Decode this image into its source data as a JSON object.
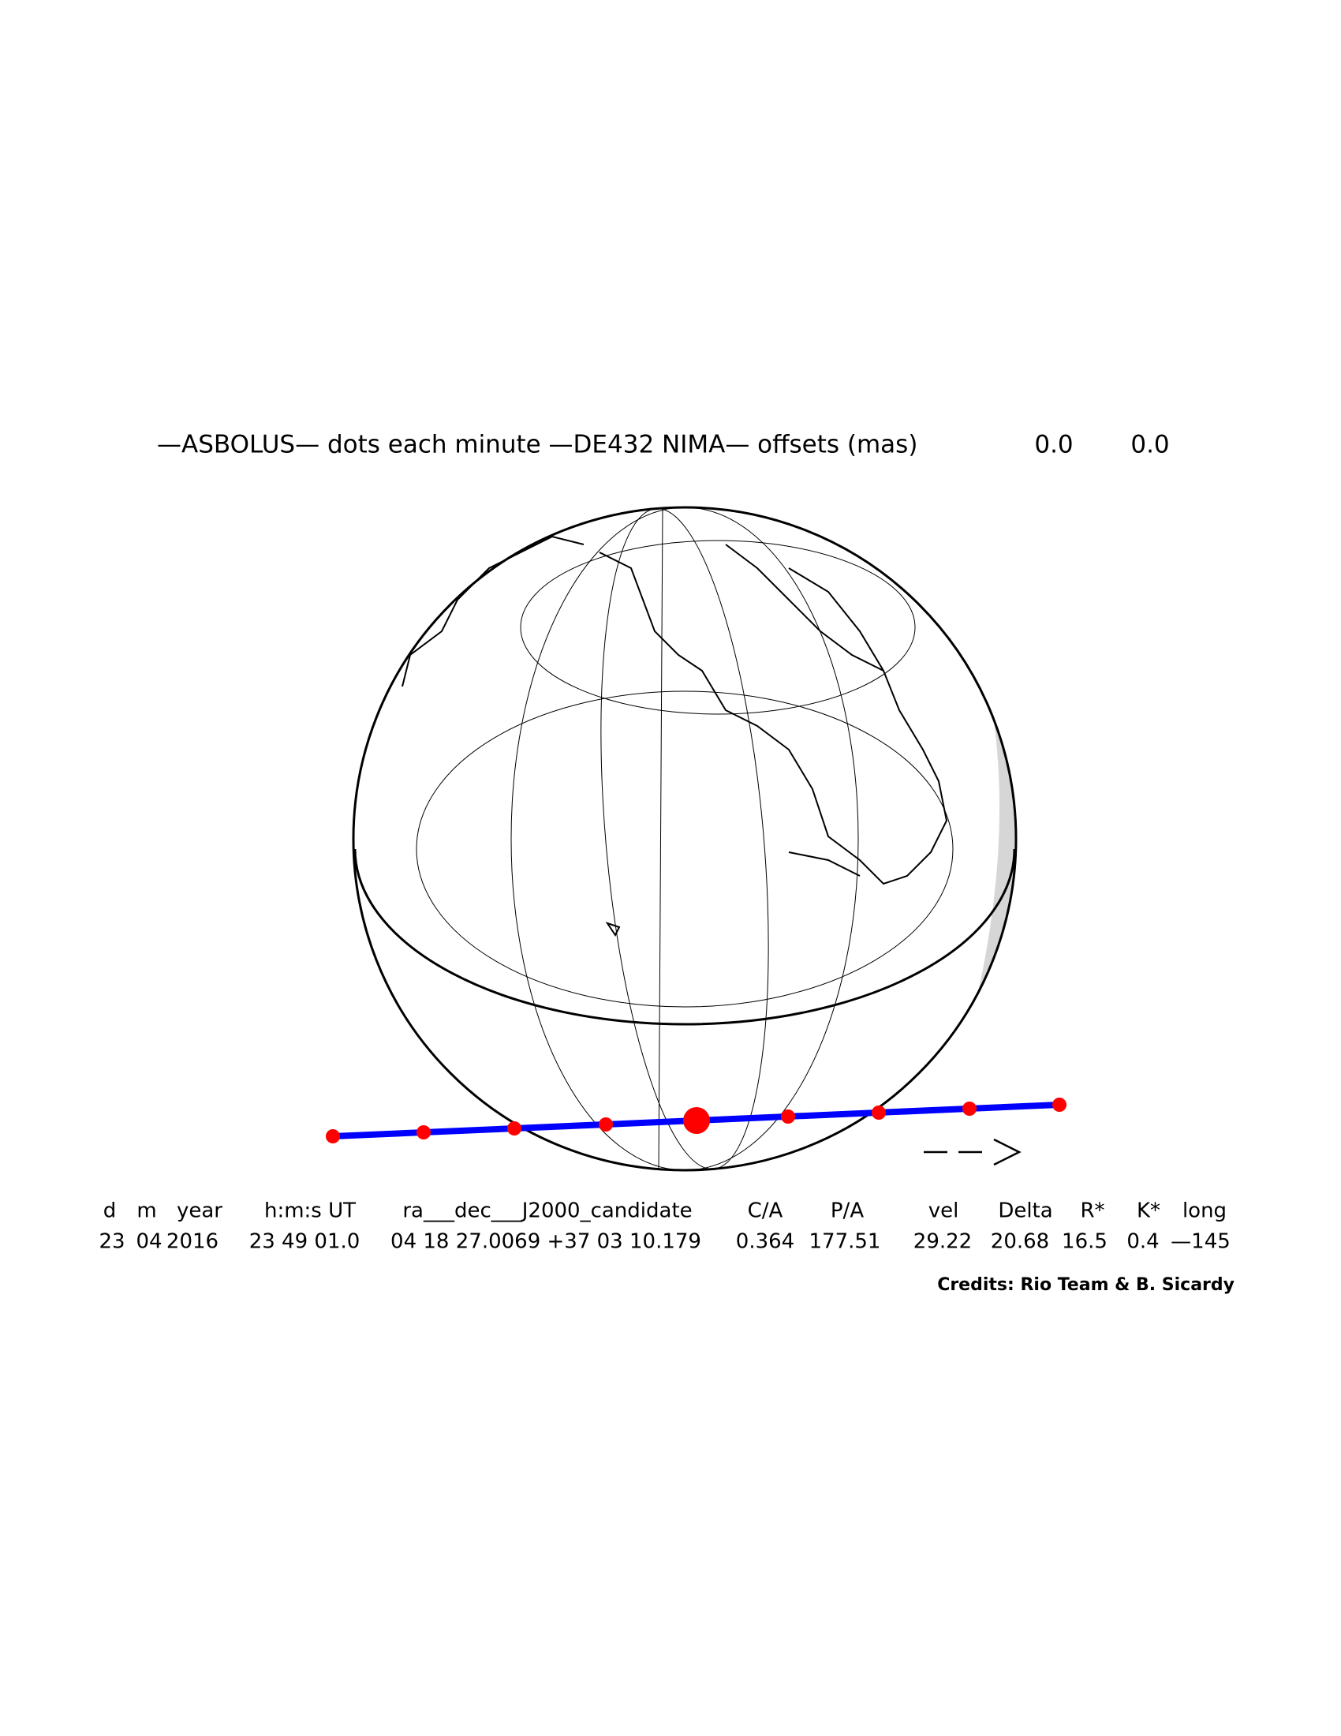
{
  "header": {
    "title": "—ASBOLUS— dots each minute —DE432 NIMA— offsets (mas)",
    "offsets": [
      "0.0",
      "0.0"
    ]
  },
  "table": {
    "columns": [
      "d",
      "m",
      "year",
      "h:m:s UT",
      "ra___dec___J2000_candidate",
      "C/A",
      "P/A",
      "vel",
      "Delta",
      "R*",
      "K*",
      "long"
    ],
    "rows": [
      [
        "23",
        "04",
        "2016",
        "23 49 01.0",
        "04 18 27.0069 +37 03 10.179",
        "0.364",
        "177.51",
        "29.22",
        "20.68",
        "16.5",
        "0.4",
        "—145"
      ]
    ]
  },
  "credits": "Credits: Rio Team & B. Sicardy"
}
